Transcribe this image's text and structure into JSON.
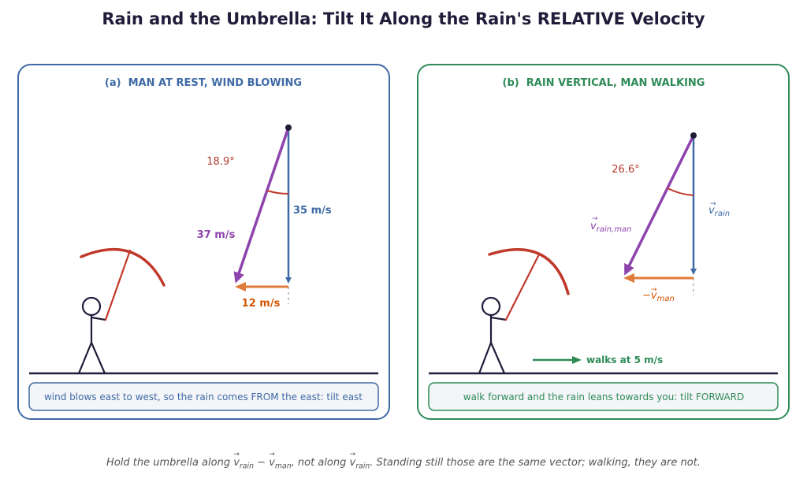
{
  "title": "Rain and the Umbrella: Tilt It Along the Rain's RELATIVE Velocity",
  "colors": {
    "panel_a": "#3f6aa5",
    "panel_b": "#2e8b57",
    "rain_vertical": "#3f6aa5",
    "rain_relative": "#8e44ad",
    "horizontal": "#e07b39",
    "umbrella": "#c0392b",
    "figure": "#1f1d3a"
  },
  "panel_a": {
    "heading": "(a)  MAN AT REST, WIND BLOWING",
    "angle_label": "18.9°",
    "resultant_label": "37 m/s",
    "vertical_label": "35 m/s",
    "horizontal_label": "12 m/s",
    "note": "wind blows east to west, so the rain comes FROM the east: tilt east"
  },
  "panel_b": {
    "heading": "(b)  RAIN VERTICAL, MAN WALKING",
    "angle_label": "26.6°",
    "resultant_label": {
      "v": "v",
      "sub": "rain,man"
    },
    "vertical_label": {
      "v": "v",
      "sub": "rain"
    },
    "horizontal_label": {
      "prefix": "−",
      "v": "v",
      "sub": "man"
    },
    "walk_label": "walks at 5 m/s",
    "note": "walk forward and the rain leans towards you: tilt FORWARD"
  },
  "caption": {
    "p1": "Hold the umbrella along ",
    "v1": "v",
    "s1": "rain",
    "minus": " − ",
    "v2": "v",
    "s2": "man",
    "p2": ", not along ",
    "v3": "v",
    "s3": "rain",
    "p3": ". Standing still those are the same vector; walking, they are not."
  }
}
